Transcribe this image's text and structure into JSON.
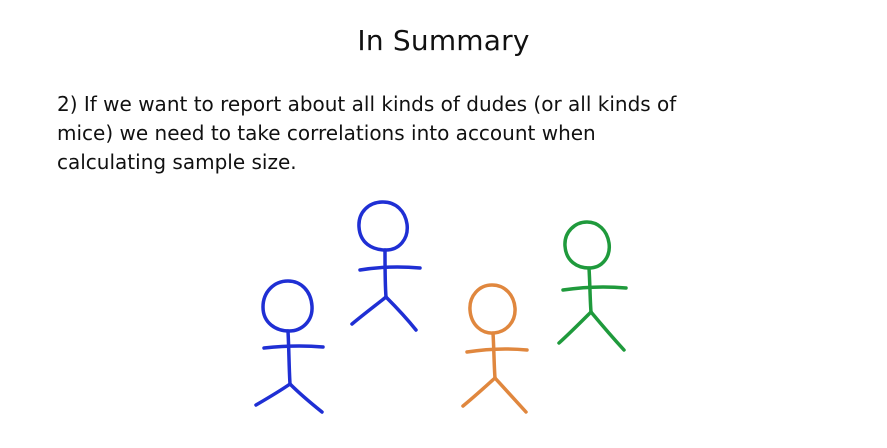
{
  "slide": {
    "title": "In Summary",
    "body": "2) If we want to report about all kinds of dudes (or all kinds of mice) we need to take correlations into account when calculating sample size."
  },
  "figures": [
    {
      "name": "blue-stick-figure-left",
      "color": "#1f2fd4"
    },
    {
      "name": "blue-stick-figure-center",
      "color": "#1f2fd4"
    },
    {
      "name": "orange-stick-figure",
      "color": "#e0873e"
    },
    {
      "name": "green-stick-figure",
      "color": "#1f9a3c"
    }
  ]
}
